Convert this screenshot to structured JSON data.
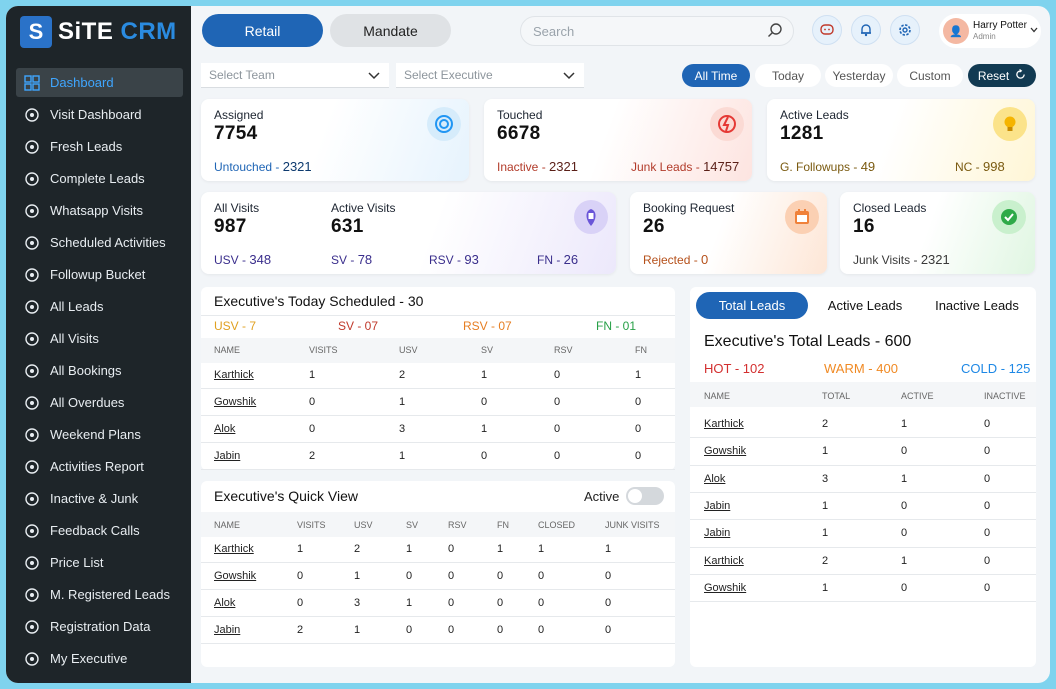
{
  "app": {
    "brand_a": "SiTE",
    "brand_b": " CRM"
  },
  "sidebar": {
    "items": [
      {
        "label": "Dashboard",
        "icon": "grid-icon"
      },
      {
        "label": "Visit Dashboard",
        "icon": "location-pin-icon"
      },
      {
        "label": "Fresh Leads",
        "icon": "star-icon"
      },
      {
        "label": "Complete Leads",
        "icon": "check-circle-icon"
      },
      {
        "label": "Whatsapp Visits",
        "icon": "whatsapp-icon"
      },
      {
        "label": "Scheduled Activities",
        "icon": "calendar-icon"
      },
      {
        "label": "Followup Bucket",
        "icon": "bucket-icon"
      },
      {
        "label": "All Leads",
        "icon": "users-icon"
      },
      {
        "label": "All Visits",
        "icon": "visit-icon"
      },
      {
        "label": "All Bookings",
        "icon": "document-icon"
      },
      {
        "label": "All Overdues",
        "icon": "clock-alert-icon"
      },
      {
        "label": "Weekend Plans",
        "icon": "clipboard-icon"
      },
      {
        "label": "Activities Report",
        "icon": "bar-chart-icon"
      },
      {
        "label": "Inactive & Junk",
        "icon": "refresh-icon"
      },
      {
        "label": "Feedback Calls",
        "icon": "phone-icon"
      },
      {
        "label": "Price List",
        "icon": "price-tag-icon"
      },
      {
        "label": "M. Registered Leads",
        "icon": "id-card-icon"
      },
      {
        "label": "Registration Data",
        "icon": "database-icon"
      },
      {
        "label": "My Executive",
        "icon": "team-icon"
      }
    ]
  },
  "top": {
    "retail": "Retail",
    "mandate": "Mandate",
    "search_placeholder": "Search",
    "user_name": "Harry Potter",
    "user_role": "Admin"
  },
  "filters": {
    "team": "Select Team",
    "executive": "Select Executive",
    "ranges": [
      "All Time",
      "Today",
      "Yesterday",
      "Custom"
    ],
    "reset": "Reset"
  },
  "stats": {
    "assigned": {
      "label": "Assigned",
      "value": "7754",
      "sub1_label": "Untouched -",
      "sub1_value": "2321"
    },
    "touched": {
      "label": "Touched",
      "value": "6678",
      "sub1_label": "Inactive -",
      "sub1_value": "2321",
      "sub2_label": "Junk Leads -",
      "sub2_value": "14757"
    },
    "active_leads": {
      "label": "Active Leads",
      "value": "1281",
      "sub1_label": "G. Followups -",
      "sub1_value": "49",
      "sub2_label": "NC -",
      "sub2_value": "998"
    },
    "all_visits": {
      "label": "All Visits",
      "value": "987"
    },
    "active_visits": {
      "label": "Active Visits",
      "value": "631"
    },
    "visit_subs": [
      {
        "label": "USV -",
        "value": "348"
      },
      {
        "label": "SV -",
        "value": "78"
      },
      {
        "label": "RSV -",
        "value": "93"
      },
      {
        "label": "FN -",
        "value": "26"
      }
    ],
    "booking": {
      "label": "Booking Request",
      "value": "26",
      "sub1_label": "Rejected -",
      "sub1_value": "0"
    },
    "closed": {
      "label": "Closed Leads",
      "value": "16",
      "sub1_label": "Junk Visits -",
      "sub1_value": "2321"
    }
  },
  "today": {
    "title": "Executive's Today Scheduled - 30",
    "summary": [
      "USV - 7",
      "SV - 07",
      "RSV - 07",
      "FN - 01"
    ],
    "headers": [
      "NAME",
      "VISITS",
      "USV",
      "SV",
      "RSV",
      "FN"
    ],
    "rows": [
      [
        "Karthick",
        "1",
        "2",
        "1",
        "0",
        "1"
      ],
      [
        "Gowshik",
        "0",
        "1",
        "0",
        "0",
        "0"
      ],
      [
        "Alok",
        "0",
        "3",
        "1",
        "0",
        "0"
      ],
      [
        "Jabin",
        "2",
        "1",
        "0",
        "0",
        "0"
      ]
    ]
  },
  "quick": {
    "title": "Executive's Quick View",
    "toggle_label": "Active",
    "headers": [
      "NAME",
      "VISITS",
      "USV",
      "SV",
      "RSV",
      "FN",
      "CLOSED",
      "JUNK VISITS"
    ],
    "rows": [
      [
        "Karthick",
        "1",
        "2",
        "1",
        "0",
        "1",
        "1",
        "1"
      ],
      [
        "Gowshik",
        "0",
        "1",
        "0",
        "0",
        "0",
        "0",
        "0"
      ],
      [
        "Alok",
        "0",
        "3",
        "1",
        "0",
        "0",
        "0",
        "0"
      ],
      [
        "Jabin",
        "2",
        "1",
        "0",
        "0",
        "0",
        "0",
        "0"
      ]
    ]
  },
  "leads": {
    "tabs": [
      "Total Leads",
      "Active Leads",
      "Inactive Leads"
    ],
    "title": "Executive's Total Leads - 600",
    "summary": [
      "HOT - 102",
      "WARM - 400",
      "COLD - 125"
    ],
    "headers": [
      "NAME",
      "TOTAL",
      "ACTIVE",
      "INACTIVE"
    ],
    "rows": [
      [
        "Karthick",
        "2",
        "1",
        "0"
      ],
      [
        "Gowshik",
        "1",
        "0",
        "0"
      ],
      [
        "Alok",
        "3",
        "1",
        "0"
      ],
      [
        "Jabin",
        "1",
        "0",
        "0"
      ],
      [
        "Jabin",
        "1",
        "0",
        "0"
      ],
      [
        "Karthick",
        "2",
        "1",
        "0"
      ],
      [
        "Gowshik",
        "1",
        "0",
        "0"
      ]
    ]
  },
  "colors": {
    "accent": "#1f65b5",
    "usv": "#e0a020",
    "sv": "#c0392b",
    "rsv": "#e67e22",
    "fn": "#27a047",
    "hot": "#d32f2f",
    "warm": "#f08a24",
    "cold": "#1e88e5"
  }
}
